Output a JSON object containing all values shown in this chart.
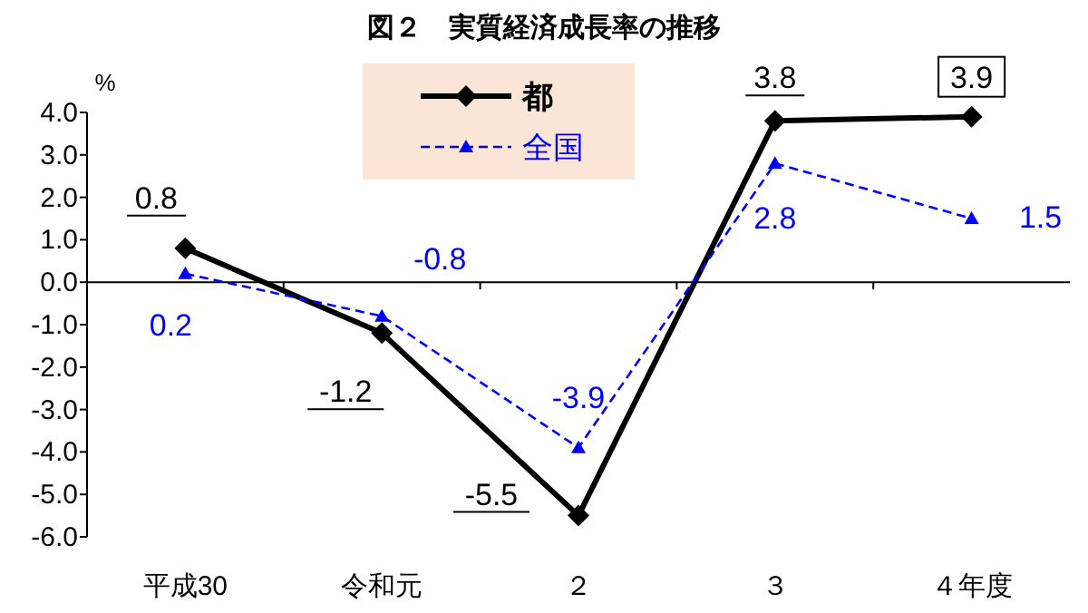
{
  "chart_data": {
    "type": "line",
    "title": "図２　実質経済成長率の推移",
    "ylabel": "%",
    "categories": [
      "平成30",
      "令和元",
      "２",
      "３",
      "４年度"
    ],
    "series": [
      {
        "name": "都",
        "color": "#000000",
        "values": [
          0.8,
          -1.2,
          -5.5,
          3.8,
          3.9
        ],
        "marker": "diamond",
        "line_style": "solid"
      },
      {
        "name": "全国",
        "color": "#0000ff",
        "values": [
          0.2,
          -0.8,
          -3.9,
          2.8,
          1.5
        ],
        "marker": "triangle",
        "line_style": "dashed"
      }
    ],
    "ylim": [
      -6,
      4
    ],
    "yticks": [
      {
        "value": 4,
        "label": "4.0"
      },
      {
        "value": 3,
        "label": "3.0"
      },
      {
        "value": 2,
        "label": "2.0"
      },
      {
        "value": 1,
        "label": "1.0"
      },
      {
        "value": 0,
        "label": "0.0"
      },
      {
        "value": -1,
        "label": "-1.0"
      },
      {
        "value": -2,
        "label": "-2.0"
      },
      {
        "value": -3,
        "label": "-3.0"
      },
      {
        "value": -4,
        "label": "-4.0"
      },
      {
        "value": -5,
        "label": "-5.0"
      },
      {
        "value": -6,
        "label": "-6.0"
      }
    ],
    "legend": "top left",
    "data_labels": true
  }
}
